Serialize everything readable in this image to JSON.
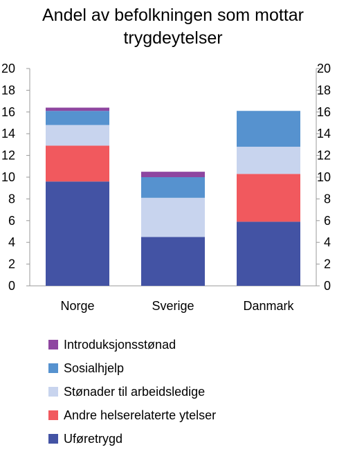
{
  "title_lines": [
    "Andel av befolkningen som mottar",
    "trygdeytelser"
  ],
  "chart_data": {
    "type": "bar",
    "stacked": true,
    "title": "Andel av befolkningen som mottar trygdeytelser",
    "categories": [
      "Norge",
      "Sverige",
      "Danmark"
    ],
    "ylim": [
      0,
      20
    ],
    "yticks": [
      0,
      2,
      4,
      6,
      8,
      10,
      12,
      14,
      16,
      18,
      20
    ],
    "grid": false,
    "right_axis": true,
    "legend_position": "bottom",
    "series": [
      {
        "name": "Uføretrygd",
        "color": "#4353A4",
        "values": [
          9.6,
          4.5,
          5.9
        ]
      },
      {
        "name": "Andre helserelaterte ytelser",
        "color": "#F1595E",
        "values": [
          3.3,
          0.0,
          4.4
        ]
      },
      {
        "name": "Stønader til arbeidsledige",
        "color": "#C8D4EE",
        "values": [
          1.9,
          3.6,
          2.5
        ]
      },
      {
        "name": "Sosialhjelp",
        "color": "#5692CF",
        "values": [
          1.3,
          1.9,
          3.3
        ]
      },
      {
        "name": "Introduksjonsstønad",
        "color": "#8E46A0",
        "values": [
          0.3,
          0.5,
          0.0
        ]
      }
    ]
  },
  "legend_order": [
    4,
    3,
    2,
    1,
    0
  ]
}
